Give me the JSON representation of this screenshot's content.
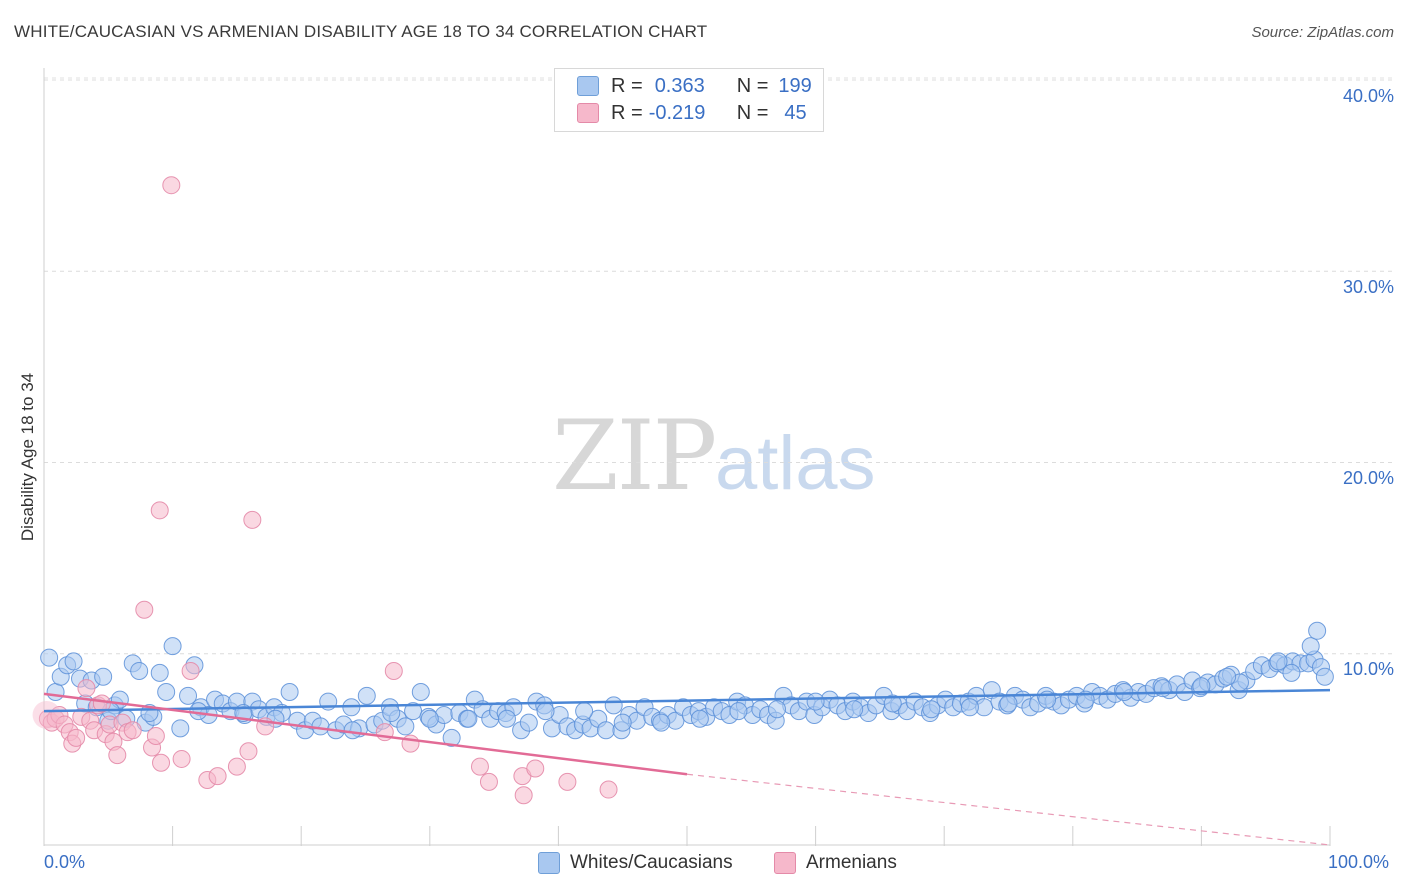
{
  "title": "WHITE/CAUCASIAN VS ARMENIAN DISABILITY AGE 18 TO 34 CORRELATION CHART",
  "source": "Source: ZipAtlas.com",
  "watermark": {
    "zip": "ZIP",
    "atlas": "atlas"
  },
  "legend": {
    "rows": [
      {
        "r_label": "R =",
        "r_value": "0.363",
        "n_label": "N =",
        "n_value": "199",
        "color": "#a9c8f0"
      },
      {
        "r_label": "R =",
        "r_value": "-0.219",
        "n_label": "N =",
        "n_value": "45",
        "color": "#f6b8cb"
      }
    ]
  },
  "bottom_legend": {
    "white": "Whites/Caucasians",
    "armenian": "Armenians"
  },
  "colors": {
    "blue": "#4a86d6",
    "blue_fill": "#a9c8f0",
    "pink": "#e26b96",
    "pink_fill": "#f6b8cb",
    "axis_text": "#3a6fc4"
  },
  "chart_data": {
    "type": "scatter",
    "title": "WHITE/CAUCASIAN VS ARMENIAN DISABILITY AGE 18 TO 34 CORRELATION CHART",
    "xlabel": "",
    "ylabel": "Disability Age 18 to 34",
    "x_tick_labels": [
      "0.0%",
      "100.0%"
    ],
    "y_tick_labels": [
      "10.0%",
      "20.0%",
      "30.0%",
      "40.0%"
    ],
    "xlim": [
      0,
      100
    ],
    "ylim": [
      0,
      40
    ],
    "grid": true,
    "series": [
      {
        "name": "Whites/Caucasians",
        "trend": [
          [
            0,
            7.0
          ],
          [
            100,
            8.1
          ]
        ],
        "points": [
          [
            0.4,
            9.8
          ],
          [
            0.9,
            8.0
          ],
          [
            1.3,
            8.8
          ],
          [
            1.8,
            9.4
          ],
          [
            2.3,
            9.6
          ],
          [
            2.8,
            8.7
          ],
          [
            3.2,
            7.4
          ],
          [
            3.7,
            8.6
          ],
          [
            4.1,
            7.2
          ],
          [
            4.6,
            8.8
          ],
          [
            5.0,
            6.5
          ],
          [
            5.5,
            7.3
          ],
          [
            5.9,
            7.6
          ],
          [
            6.4,
            6.6
          ],
          [
            6.9,
            9.5
          ],
          [
            7.4,
            9.1
          ],
          [
            7.9,
            6.4
          ],
          [
            8.5,
            6.7
          ],
          [
            9.0,
            9.0
          ],
          [
            9.5,
            8.0
          ],
          [
            10.0,
            10.4
          ],
          [
            10.6,
            6.1
          ],
          [
            11.2,
            7.8
          ],
          [
            11.7,
            9.4
          ],
          [
            12.2,
            7.2
          ],
          [
            12.8,
            6.8
          ],
          [
            13.3,
            7.6
          ],
          [
            13.9,
            7.4
          ],
          [
            14.5,
            7.0
          ],
          [
            15.0,
            7.5
          ],
          [
            15.6,
            6.8
          ],
          [
            16.2,
            7.5
          ],
          [
            16.7,
            7.1
          ],
          [
            17.3,
            6.7
          ],
          [
            17.9,
            7.2
          ],
          [
            18.5,
            6.9
          ],
          [
            19.1,
            8.0
          ],
          [
            19.7,
            6.5
          ],
          [
            20.3,
            6.0
          ],
          [
            20.9,
            6.5
          ],
          [
            21.5,
            6.2
          ],
          [
            22.1,
            7.5
          ],
          [
            22.7,
            6.0
          ],
          [
            23.3,
            6.3
          ],
          [
            23.9,
            7.2
          ],
          [
            24.5,
            6.1
          ],
          [
            25.1,
            7.8
          ],
          [
            25.7,
            6.3
          ],
          [
            26.3,
            6.5
          ],
          [
            26.9,
            7.2
          ],
          [
            27.5,
            6.6
          ],
          [
            28.1,
            6.2
          ],
          [
            28.7,
            7.0
          ],
          [
            29.3,
            8.0
          ],
          [
            29.9,
            6.7
          ],
          [
            30.5,
            6.3
          ],
          [
            31.1,
            6.8
          ],
          [
            31.7,
            5.6
          ],
          [
            32.3,
            6.9
          ],
          [
            32.9,
            6.6
          ],
          [
            33.5,
            7.6
          ],
          [
            34.1,
            7.1
          ],
          [
            34.7,
            6.6
          ],
          [
            35.3,
            7.0
          ],
          [
            35.9,
            6.9
          ],
          [
            36.5,
            7.2
          ],
          [
            37.1,
            6.0
          ],
          [
            37.7,
            6.4
          ],
          [
            38.3,
            7.5
          ],
          [
            38.9,
            7.3
          ],
          [
            39.5,
            6.1
          ],
          [
            40.1,
            6.8
          ],
          [
            40.7,
            6.2
          ],
          [
            41.3,
            6.0
          ],
          [
            41.9,
            6.3
          ],
          [
            42.5,
            6.1
          ],
          [
            43.1,
            6.6
          ],
          [
            43.7,
            6.0
          ],
          [
            44.3,
            7.3
          ],
          [
            44.9,
            6.0
          ],
          [
            45.5,
            6.8
          ],
          [
            46.1,
            6.5
          ],
          [
            46.7,
            7.2
          ],
          [
            47.3,
            6.7
          ],
          [
            47.9,
            6.5
          ],
          [
            48.5,
            6.8
          ],
          [
            49.1,
            6.5
          ],
          [
            49.7,
            7.2
          ],
          [
            50.3,
            6.8
          ],
          [
            50.9,
            7.0
          ],
          [
            51.5,
            6.7
          ],
          [
            52.1,
            7.2
          ],
          [
            52.7,
            7.0
          ],
          [
            53.3,
            6.8
          ],
          [
            53.9,
            7.5
          ],
          [
            54.5,
            7.3
          ],
          [
            55.1,
            6.8
          ],
          [
            55.7,
            7.1
          ],
          [
            56.3,
            6.8
          ],
          [
            56.9,
            6.5
          ],
          [
            57.5,
            7.8
          ],
          [
            58.1,
            7.3
          ],
          [
            58.7,
            7.0
          ],
          [
            59.3,
            7.5
          ],
          [
            59.9,
            6.8
          ],
          [
            60.5,
            7.2
          ],
          [
            61.1,
            7.6
          ],
          [
            61.7,
            7.3
          ],
          [
            62.3,
            7.0
          ],
          [
            62.9,
            7.5
          ],
          [
            63.5,
            7.2
          ],
          [
            64.1,
            6.9
          ],
          [
            64.7,
            7.3
          ],
          [
            65.3,
            7.8
          ],
          [
            65.9,
            7.0
          ],
          [
            66.5,
            7.3
          ],
          [
            67.1,
            7.0
          ],
          [
            67.7,
            7.5
          ],
          [
            68.3,
            7.2
          ],
          [
            68.9,
            6.9
          ],
          [
            69.5,
            7.3
          ],
          [
            70.1,
            7.6
          ],
          [
            70.7,
            7.2
          ],
          [
            71.3,
            7.4
          ],
          [
            71.9,
            7.5
          ],
          [
            72.5,
            7.8
          ],
          [
            73.1,
            7.2
          ],
          [
            73.7,
            8.1
          ],
          [
            74.3,
            7.5
          ],
          [
            74.9,
            7.3
          ],
          [
            75.5,
            7.8
          ],
          [
            76.1,
            7.6
          ],
          [
            76.7,
            7.2
          ],
          [
            77.3,
            7.4
          ],
          [
            77.9,
            7.8
          ],
          [
            78.5,
            7.5
          ],
          [
            79.1,
            7.3
          ],
          [
            79.7,
            7.6
          ],
          [
            80.3,
            7.8
          ],
          [
            80.9,
            7.4
          ],
          [
            81.5,
            8.0
          ],
          [
            82.1,
            7.8
          ],
          [
            82.7,
            7.6
          ],
          [
            83.3,
            7.9
          ],
          [
            83.9,
            8.1
          ],
          [
            84.5,
            7.7
          ],
          [
            85.1,
            8.0
          ],
          [
            85.7,
            7.9
          ],
          [
            86.3,
            8.2
          ],
          [
            86.9,
            8.3
          ],
          [
            87.5,
            8.1
          ],
          [
            88.1,
            8.4
          ],
          [
            88.7,
            8.0
          ],
          [
            89.3,
            8.6
          ],
          [
            89.9,
            8.2
          ],
          [
            90.5,
            8.5
          ],
          [
            91.1,
            8.4
          ],
          [
            91.7,
            8.7
          ],
          [
            92.3,
            8.9
          ],
          [
            92.9,
            8.1
          ],
          [
            93.5,
            8.6
          ],
          [
            94.1,
            9.1
          ],
          [
            94.7,
            9.4
          ],
          [
            95.3,
            9.2
          ],
          [
            95.9,
            9.5
          ],
          [
            96.5,
            9.4
          ],
          [
            97.1,
            9.6
          ],
          [
            97.7,
            9.5
          ],
          [
            98.3,
            9.5
          ],
          [
            98.8,
            9.7
          ],
          [
            99.3,
            9.3
          ],
          [
            99.6,
            8.8
          ],
          [
            36.0,
            6.6
          ],
          [
            42.0,
            7.0
          ],
          [
            48.0,
            6.4
          ],
          [
            54.0,
            7.0
          ],
          [
            60.0,
            7.5
          ],
          [
            66.0,
            7.4
          ],
          [
            72.0,
            7.2
          ],
          [
            78.0,
            7.6
          ],
          [
            84.0,
            8.0
          ],
          [
            90.0,
            8.3
          ],
          [
            93.0,
            8.5
          ],
          [
            96.0,
            9.6
          ],
          [
            98.5,
            10.4
          ],
          [
            99.0,
            11.2
          ],
          [
            12.0,
            7.0
          ],
          [
            18.0,
            6.6
          ],
          [
            24.0,
            6.0
          ],
          [
            30.0,
            6.6
          ],
          [
            15.5,
            6.9
          ],
          [
            27.0,
            6.9
          ],
          [
            33.0,
            6.6
          ],
          [
            39.0,
            7.0
          ],
          [
            45.0,
            6.4
          ],
          [
            51.0,
            6.6
          ],
          [
            57.0,
            7.1
          ],
          [
            63.0,
            7.1
          ],
          [
            69.0,
            7.1
          ],
          [
            75.0,
            7.4
          ],
          [
            81.0,
            7.6
          ],
          [
            87.0,
            8.2
          ],
          [
            92.0,
            8.8
          ],
          [
            97.0,
            9.0
          ],
          [
            5.2,
            7.0
          ],
          [
            8.2,
            6.9
          ]
        ]
      },
      {
        "name": "Armenians",
        "trend_solid": [
          [
            0,
            7.9
          ],
          [
            50,
            3.7
          ]
        ],
        "trend_dashed": [
          [
            50,
            3.7
          ],
          [
            100,
            0.0
          ]
        ],
        "points": [
          [
            0.3,
            6.6
          ],
          [
            0.6,
            6.4
          ],
          [
            0.9,
            6.6
          ],
          [
            1.2,
            6.8
          ],
          [
            1.6,
            6.3
          ],
          [
            2.0,
            5.9
          ],
          [
            2.2,
            5.3
          ],
          [
            2.5,
            5.6
          ],
          [
            2.9,
            6.7
          ],
          [
            3.3,
            8.2
          ],
          [
            3.6,
            6.5
          ],
          [
            3.9,
            6.0
          ],
          [
            4.2,
            7.3
          ],
          [
            4.5,
            7.4
          ],
          [
            4.8,
            5.8
          ],
          [
            5.1,
            6.3
          ],
          [
            5.4,
            5.4
          ],
          [
            5.7,
            4.7
          ],
          [
            6.1,
            6.4
          ],
          [
            6.5,
            5.9
          ],
          [
            6.9,
            6.0
          ],
          [
            7.8,
            12.3
          ],
          [
            8.4,
            5.1
          ],
          [
            8.7,
            5.7
          ],
          [
            9.1,
            4.3
          ],
          [
            9.9,
            34.5
          ],
          [
            10.7,
            4.5
          ],
          [
            11.4,
            9.1
          ],
          [
            12.7,
            3.4
          ],
          [
            13.5,
            3.6
          ],
          [
            15.0,
            4.1
          ],
          [
            15.9,
            4.9
          ],
          [
            17.2,
            6.2
          ],
          [
            9.0,
            17.5
          ],
          [
            16.2,
            17.0
          ],
          [
            26.5,
            5.9
          ],
          [
            27.2,
            9.1
          ],
          [
            28.5,
            5.3
          ],
          [
            33.9,
            4.1
          ],
          [
            34.6,
            3.3
          ],
          [
            37.2,
            3.6
          ],
          [
            38.2,
            4.0
          ],
          [
            40.7,
            3.3
          ],
          [
            43.9,
            2.9
          ],
          [
            37.3,
            2.6
          ]
        ]
      }
    ]
  }
}
